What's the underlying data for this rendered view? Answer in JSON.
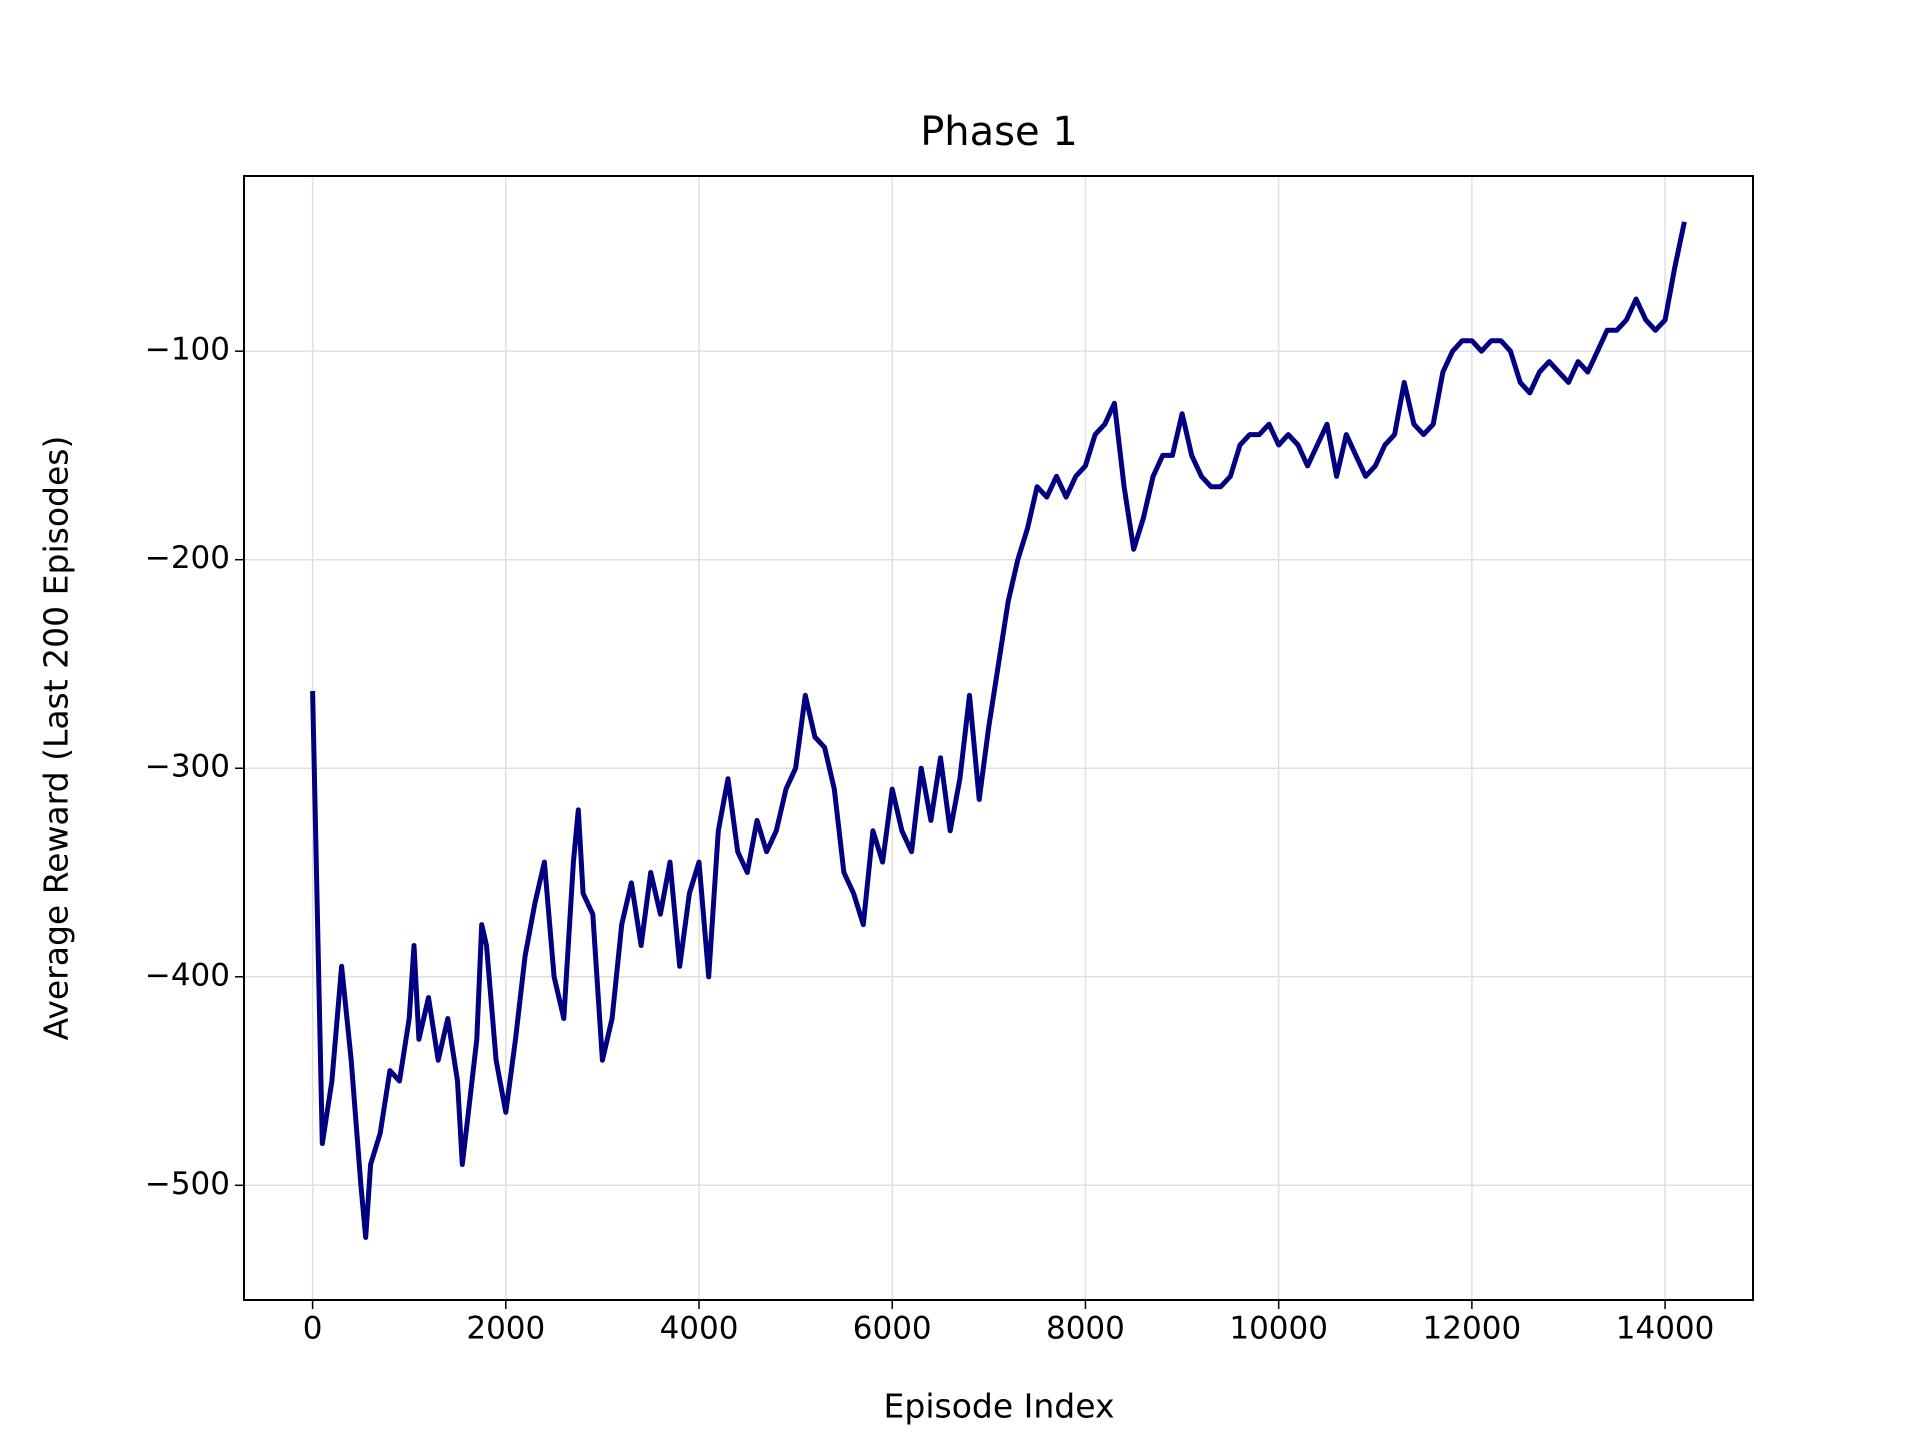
{
  "chart_data": {
    "type": "line",
    "title": "Phase 1",
    "x_label": "Episode Index",
    "y_label": "Average Reward (Last 200 Episodes)",
    "x": [
      0,
      100,
      200,
      300,
      400,
      500,
      550,
      600,
      700,
      800,
      900,
      1000,
      1050,
      1100,
      1200,
      1300,
      1400,
      1500,
      1550,
      1600,
      1700,
      1750,
      1800,
      1900,
      2000,
      2100,
      2200,
      2300,
      2400,
      2500,
      2600,
      2700,
      2750,
      2800,
      2900,
      3000,
      3100,
      3200,
      3300,
      3400,
      3500,
      3600,
      3700,
      3800,
      3900,
      4000,
      4100,
      4200,
      4300,
      4400,
      4500,
      4600,
      4700,
      4800,
      4900,
      5000,
      5100,
      5200,
      5300,
      5400,
      5500,
      5600,
      5700,
      5800,
      5900,
      6000,
      6100,
      6200,
      6300,
      6400,
      6500,
      6600,
      6700,
      6800,
      6900,
      7000,
      7100,
      7200,
      7300,
      7400,
      7500,
      7600,
      7700,
      7800,
      7900,
      8000,
      8100,
      8200,
      8300,
      8400,
      8500,
      8600,
      8700,
      8800,
      8900,
      9000,
      9100,
      9200,
      9300,
      9400,
      9500,
      9600,
      9700,
      9800,
      9900,
      10000,
      10100,
      10200,
      10300,
      10400,
      10500,
      10600,
      10700,
      10800,
      10900,
      11000,
      11100,
      11200,
      11300,
      11400,
      11500,
      11600,
      11700,
      11800,
      11900,
      12000,
      12100,
      12200,
      12300,
      12400,
      12500,
      12600,
      12700,
      12800,
      12900,
      13000,
      13100,
      13200,
      13300,
      13400,
      13500,
      13600,
      13700,
      13800,
      13900,
      14000,
      14100,
      14200
    ],
    "series": [
      {
        "color": "#000080",
        "values": [
          -263,
          -480,
          -450,
          -395,
          -440,
          -500,
          -525,
          -490,
          -475,
          -445,
          -450,
          -420,
          -385,
          -430,
          -410,
          -440,
          -420,
          -450,
          -490,
          -470,
          -430,
          -375,
          -385,
          -440,
          -465,
          -430,
          -390,
          -365,
          -345,
          -400,
          -420,
          -345,
          -320,
          -360,
          -370,
          -440,
          -420,
          -375,
          -355,
          -385,
          -350,
          -370,
          -345,
          -395,
          -360,
          -345,
          -400,
          -330,
          -305,
          -340,
          -350,
          -325,
          -340,
          -330,
          -310,
          -300,
          -265,
          -285,
          -290,
          -310,
          -350,
          -360,
          -375,
          -330,
          -345,
          -310,
          -330,
          -340,
          -300,
          -325,
          -295,
          -330,
          -305,
          -265,
          -315,
          -280,
          -250,
          -220,
          -200,
          -185,
          -165,
          -170,
          -160,
          -170,
          -160,
          -155,
          -140,
          -135,
          -125,
          -165,
          -195,
          -180,
          -160,
          -150,
          -150,
          -130,
          -150,
          -160,
          -165,
          -165,
          -160,
          -145,
          -140,
          -140,
          -135,
          -145,
          -140,
          -145,
          -155,
          -145,
          -135,
          -160,
          -140,
          -150,
          -160,
          -155,
          -145,
          -140,
          -115,
          -135,
          -140,
          -135,
          -110,
          -100,
          -95,
          -95,
          -100,
          -95,
          -95,
          -100,
          -115,
          -120,
          -110,
          -105,
          -110,
          -115,
          -105,
          -110,
          -100,
          -90,
          -90,
          -85,
          -75,
          -85,
          -90,
          -85,
          -60,
          -38
        ]
      }
    ],
    "xlim": [
      -710,
      14910
    ],
    "ylim": [
      -555,
      -16
    ],
    "xticks": [
      0,
      2000,
      4000,
      6000,
      8000,
      10000,
      12000,
      14000
    ],
    "yticks": [
      {
        "value": -500,
        "label": "−500"
      },
      {
        "value": -400,
        "label": "−400"
      },
      {
        "value": -300,
        "label": "−300"
      },
      {
        "value": -200,
        "label": "−200"
      },
      {
        "value": -100,
        "label": "−100"
      }
    ],
    "grid": true
  }
}
